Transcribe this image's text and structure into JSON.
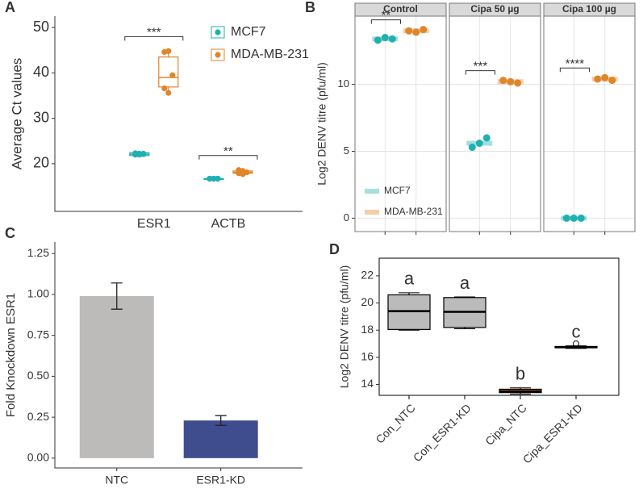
{
  "chart_data": [
    {
      "panel": "A",
      "type": "box",
      "ylabel": "Average Ct values",
      "categories": [
        "ESR1",
        "ACTB"
      ],
      "ylim": [
        9.5,
        52.5
      ],
      "yticks": [
        20,
        30,
        40,
        50
      ],
      "legend": "top-right",
      "series": [
        {
          "name": "MCF7",
          "color": "#1fb0b0",
          "boxes": [
            [
              21.6,
              21.8,
              22.1,
              22.4,
              22.6
            ],
            [
              16.5,
              16.6,
              16.7,
              16.7,
              16.8
            ]
          ],
          "points": [
            [
              22.0,
              22.2,
              22.1,
              22.3,
              22.0,
              22.2
            ],
            [
              16.7,
              16.7,
              16.7,
              16.7,
              16.7,
              16.7
            ]
          ]
        },
        {
          "name": "MDA-MB-231",
          "color": "#e0852a",
          "boxes": [
            [
              35.6,
              36.9,
              39.0,
              43.5,
              44.8
            ],
            [
              17.7,
              17.9,
              18.1,
              18.4,
              18.6
            ]
          ],
          "points": [
            [
              44.6,
              44.8,
              39.5,
              36.6,
              35.6
            ],
            [
              18.6,
              18.4,
              18.1,
              17.9,
              17.7
            ]
          ]
        }
      ],
      "annotations": [
        "***",
        "**"
      ]
    },
    {
      "panel": "B",
      "type": "dot",
      "ylabel": "Log2 DENV titre (pfu/ml)",
      "facets": [
        "Control",
        "Cipa 50 µg",
        "Cipa 100 µg"
      ],
      "ylim": [
        -1,
        15.1
      ],
      "yticks": [
        0,
        5,
        10
      ],
      "grid": true,
      "legend": "bottom-left",
      "series": [
        {
          "name": "MCF7",
          "color": "#1fb0b0",
          "values": [
            [
              13.3,
              13.5,
              13.4
            ],
            [
              5.3,
              5.6,
              6.0
            ],
            [
              0,
              0,
              0
            ]
          ],
          "means": [
            13.4,
            5.6,
            0
          ]
        },
        {
          "name": "MDA-MB-231",
          "color": "#e0852a",
          "values": [
            [
              14.0,
              13.9,
              14.1
            ],
            [
              10.3,
              10.2,
              10.1
            ],
            [
              10.4,
              10.5,
              10.3
            ]
          ],
          "means": [
            14.0,
            10.2,
            10.4
          ]
        }
      ],
      "annotations": [
        "**",
        "***",
        "****"
      ]
    },
    {
      "panel": "C",
      "type": "bar",
      "ylabel": "Fold Knockdown ESR1",
      "categories": [
        "NTC",
        "ESR1-KD"
      ],
      "values": [
        0.99,
        0.23
      ],
      "errors": [
        0.08,
        0.03
      ],
      "colors": [
        "#bdbaba",
        "#3f4d8f"
      ],
      "ylim": [
        -0.06,
        1.32
      ],
      "yticks": [
        {
          "value": 0,
          "label": "0.00"
        },
        {
          "value": 0.25,
          "label": "0.25"
        },
        {
          "value": 0.5,
          "label": "0.50"
        },
        {
          "value": 0.75,
          "label": "0.75"
        },
        {
          "value": 1,
          "label": "1.00"
        },
        {
          "value": 1.25,
          "label": "1.25"
        }
      ]
    },
    {
      "panel": "D",
      "type": "box",
      "ylabel": "Log2 DENV titre (pfu/ml)",
      "categories": [
        "Con_NTC",
        "Con_ESR1-KD",
        "Cipa_NTC",
        "Cipa_ESR1-KD"
      ],
      "ylim": [
        13.2,
        23.3
      ],
      "yticks": [
        14,
        16,
        18,
        20,
        22
      ],
      "boxes": [
        [
          18.0,
          18.05,
          19.4,
          20.6,
          20.75
        ],
        [
          18.1,
          18.2,
          19.35,
          20.4,
          20.45
        ],
        [
          13.3,
          13.4,
          13.5,
          13.65,
          13.75
        ],
        [
          16.65,
          16.7,
          16.75,
          16.8,
          16.85
        ]
      ],
      "box_colors": [
        "#bbbbbb",
        "#bbbbbb",
        "#e8702a",
        "#bbbbbb"
      ],
      "outliers": [
        [],
        [],
        [],
        [
          17.0
        ]
      ],
      "letters": [
        "a",
        "a",
        "b",
        "c"
      ],
      "letter_colors": [
        "#b0b0b0",
        "#b0b0b0",
        "#e8602a",
        "#6a8cc8"
      ]
    }
  ]
}
